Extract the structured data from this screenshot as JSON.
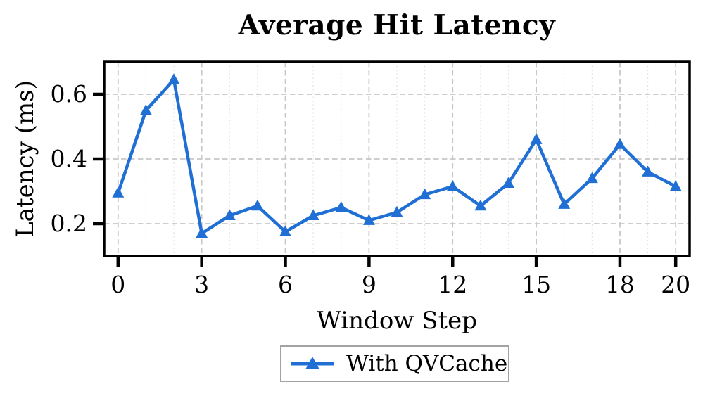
{
  "chart_data": {
    "type": "line",
    "title": "Average Hit Latency",
    "xlabel": "Window Step",
    "ylabel": "Latency (ms)",
    "x": [
      0,
      1,
      2,
      3,
      4,
      5,
      6,
      7,
      8,
      9,
      10,
      11,
      12,
      13,
      14,
      15,
      16,
      17,
      18,
      19,
      20
    ],
    "series": [
      {
        "name": "With QVCache",
        "color": "#1f6fd4",
        "marker": "triangle-up",
        "values": [
          0.295,
          0.55,
          0.645,
          0.17,
          0.225,
          0.255,
          0.175,
          0.225,
          0.25,
          0.21,
          0.235,
          0.29,
          0.315,
          0.255,
          0.325,
          0.46,
          0.26,
          0.34,
          0.445,
          0.36,
          0.315
        ]
      }
    ],
    "xticks": [
      0,
      3,
      6,
      9,
      12,
      15,
      18,
      20
    ],
    "yticks": [
      0.2,
      0.4,
      0.6
    ],
    "xlim": [
      -0.5,
      20.5
    ],
    "ylim": [
      0.1,
      0.7
    ],
    "grid": true,
    "minor_x_grid_every": 1,
    "legend_position": "below",
    "colors": {
      "axis": "#000000",
      "major_grid": "#c7c7c7",
      "minor_grid": "#e3e3e3",
      "legend_border": "#a3a3a3",
      "background": "#ffffff"
    }
  }
}
